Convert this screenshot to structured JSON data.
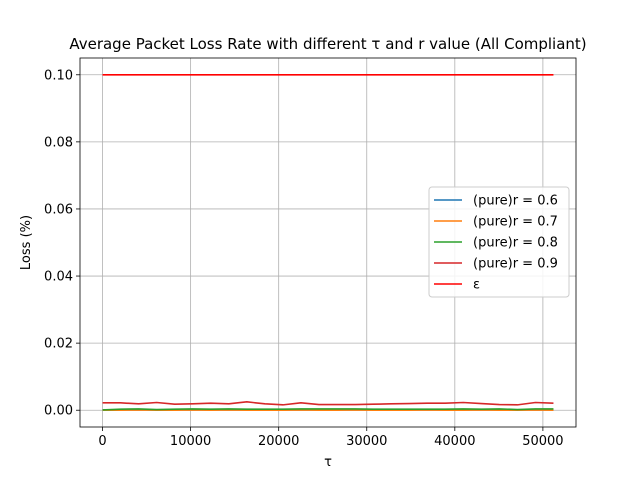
{
  "chart_data": {
    "type": "line",
    "title": "Average Packet Loss Rate with different τ and r value (All Compliant)",
    "xlabel": "τ",
    "ylabel": "Loss (%)",
    "xlim": [
      -2560,
      53760
    ],
    "ylim": [
      -0.005,
      0.105
    ],
    "xticks": [
      0,
      10000,
      20000,
      30000,
      40000,
      50000
    ],
    "xtick_labels": [
      "0",
      "10000",
      "20000",
      "30000",
      "40000",
      "50000"
    ],
    "yticks": [
      0.0,
      0.02,
      0.04,
      0.06,
      0.08,
      0.1
    ],
    "ytick_labels": [
      "0.00",
      "0.02",
      "0.04",
      "0.06",
      "0.08",
      "0.10"
    ],
    "grid": true,
    "legend_position": "center-right",
    "x": [
      0,
      2048,
      4096,
      6144,
      8192,
      10240,
      12288,
      14336,
      16384,
      18432,
      20480,
      22528,
      24576,
      26624,
      28672,
      30720,
      32768,
      34816,
      36864,
      38912,
      40960,
      43008,
      45056,
      47104,
      49152,
      51200
    ],
    "series": [
      {
        "name": "(pure)r = 0.6",
        "color": "#1f77b4",
        "values": [
          0.0001,
          0.0001,
          0.0001,
          0.0001,
          0.0001,
          0.0001,
          0.0001,
          0.0001,
          0.0001,
          0.0001,
          0.0001,
          0.0001,
          0.0001,
          0.0001,
          0.0001,
          0.0001,
          0.0001,
          0.0001,
          0.0001,
          0.0001,
          0.0001,
          0.0001,
          0.0001,
          0.0001,
          0.0001,
          0.0001
        ]
      },
      {
        "name": "(pure)r = 0.7",
        "color": "#ff7f0e",
        "values": [
          0.0,
          0.0,
          0.0001,
          0.0,
          0.0,
          0.0001,
          0.0,
          0.0001,
          0.0,
          0.0,
          0.0,
          0.0001,
          0.0,
          0.0,
          0.0001,
          0.0,
          0.0,
          0.0,
          0.0001,
          0.0,
          0.0,
          0.0001,
          0.0,
          0.0,
          0.0001,
          0.0
        ]
      },
      {
        "name": "(pure)r = 0.8",
        "color": "#2ca02c",
        "values": [
          0.0001,
          0.0003,
          0.0004,
          0.0002,
          0.0003,
          0.0004,
          0.0003,
          0.0004,
          0.0003,
          0.0003,
          0.0003,
          0.0004,
          0.0004,
          0.0004,
          0.0004,
          0.0003,
          0.0003,
          0.0003,
          0.0003,
          0.0003,
          0.0004,
          0.0003,
          0.0004,
          0.0002,
          0.0004,
          0.0004
        ]
      },
      {
        "name": "(pure)r = 0.9",
        "color": "#d62728",
        "values": [
          0.0022,
          0.0022,
          0.0019,
          0.0023,
          0.0018,
          0.0019,
          0.0021,
          0.0019,
          0.0025,
          0.0019,
          0.0016,
          0.0022,
          0.0017,
          0.0017,
          0.0017,
          0.0018,
          0.0019,
          0.002,
          0.0021,
          0.0021,
          0.0023,
          0.002,
          0.0017,
          0.0016,
          0.0023,
          0.0021
        ]
      },
      {
        "name": "ε",
        "color": "#ff0000",
        "values": [
          0.1,
          0.1,
          0.1,
          0.1,
          0.1,
          0.1,
          0.1,
          0.1,
          0.1,
          0.1,
          0.1,
          0.1,
          0.1,
          0.1,
          0.1,
          0.1,
          0.1,
          0.1,
          0.1,
          0.1,
          0.1,
          0.1,
          0.1,
          0.1,
          0.1,
          0.1
        ]
      }
    ]
  }
}
